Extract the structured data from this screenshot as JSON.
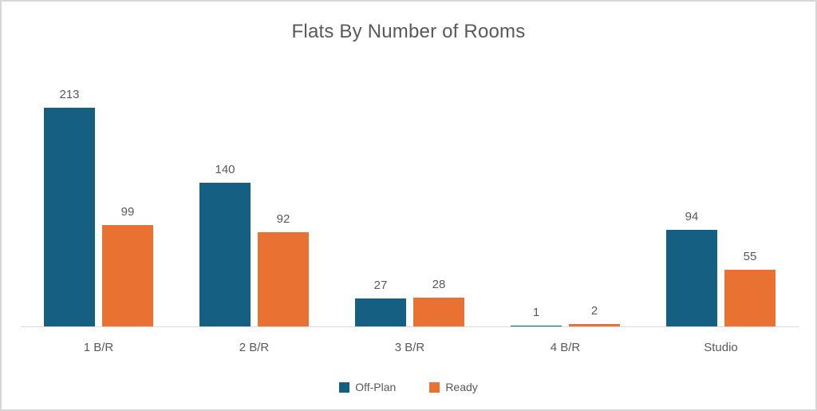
{
  "chart_data": {
    "type": "bar",
    "title": "Flats By Number of Rooms",
    "categories": [
      "1 B/R",
      "2 B/R",
      "3 B/R",
      "4 B/R",
      "Studio"
    ],
    "series": [
      {
        "name": "Off-Plan",
        "color": "#156082",
        "values": [
          213,
          140,
          27,
          1,
          94
        ]
      },
      {
        "name": "Ready",
        "color": "#E97132",
        "values": [
          99,
          92,
          28,
          2,
          55
        ]
      }
    ],
    "data_labels": true,
    "y_axis_visible": false,
    "grid": false,
    "legend_position": "bottom",
    "ylim": [
      0,
      213
    ]
  },
  "colors": {
    "title_text": "#595959",
    "label_text": "#595959",
    "axis_line": "#D9D9D9",
    "frame_border": "#D7D7D7",
    "background": "#FFFFFF"
  }
}
